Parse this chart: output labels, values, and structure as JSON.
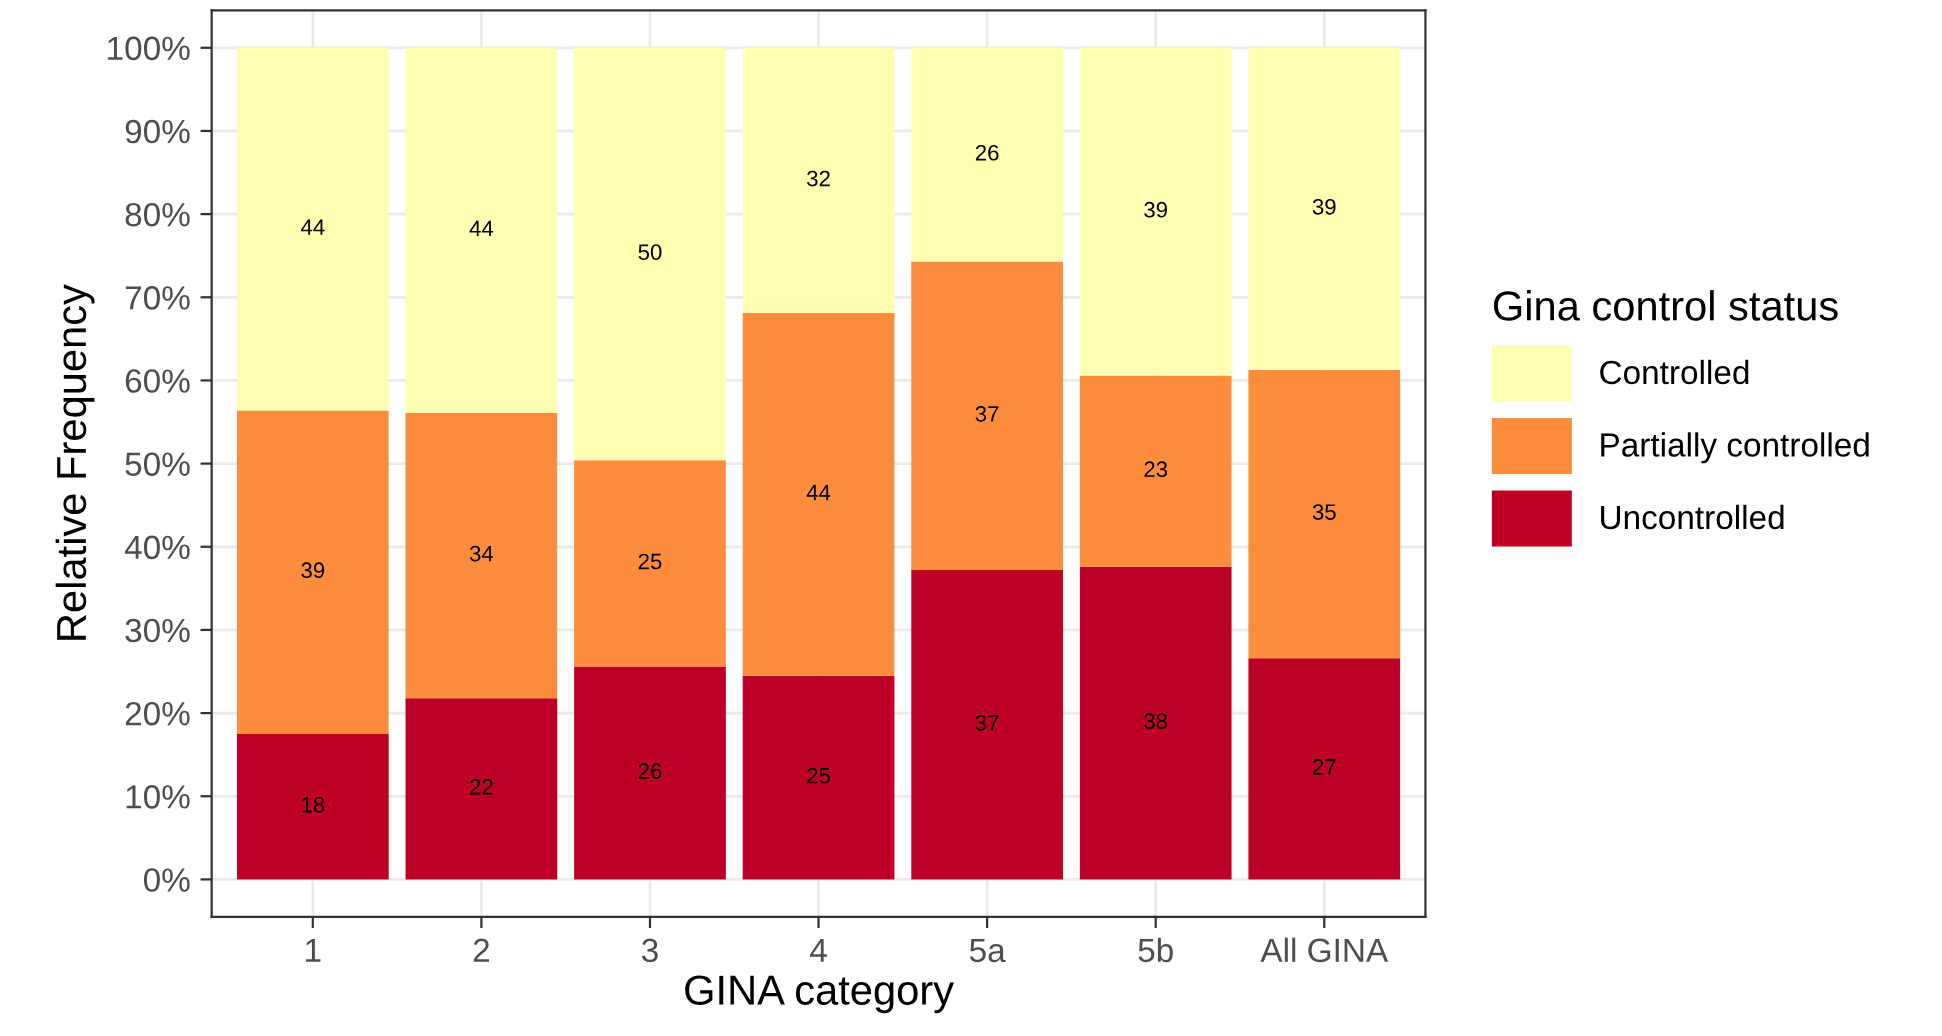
{
  "chart_data": {
    "type": "bar",
    "stacked": true,
    "xlabel": "GINA category",
    "ylabel": "Relative Frequency",
    "legend_title": "Gina control status",
    "legend": "right",
    "grid": true,
    "categories": [
      "1",
      "2",
      "3",
      "4",
      "5a",
      "5b",
      "All GINA"
    ],
    "series": [
      {
        "name": "Uncontrolled",
        "color": "#bd0026",
        "values": [
          17.5,
          21.8,
          25.6,
          24.5,
          37.2,
          37.6,
          26.6
        ],
        "value_labels": [
          "18",
          "22",
          "26",
          "25",
          "37",
          "38",
          "27"
        ]
      },
      {
        "name": "Partially controlled",
        "color": "#fd8d3c",
        "values": [
          38.9,
          34.3,
          24.8,
          43.6,
          37.1,
          23.0,
          34.7
        ],
        "value_labels": [
          "39",
          "34",
          "25",
          "44",
          "37",
          "23",
          "35"
        ]
      },
      {
        "name": "Controlled",
        "color": "#ffffb2",
        "values": [
          43.6,
          43.9,
          49.6,
          31.9,
          25.7,
          39.4,
          38.7
        ],
        "value_labels": [
          "44",
          "44",
          "50",
          "32",
          "26",
          "39",
          "39"
        ]
      }
    ],
    "ylim": [
      -4.5,
      104.5
    ],
    "yticks": [
      {
        "value": 0,
        "label": "0%"
      },
      {
        "value": 10,
        "label": "10%"
      },
      {
        "value": 20,
        "label": "20%"
      },
      {
        "value": 30,
        "label": "30%"
      },
      {
        "value": 40,
        "label": "40%"
      },
      {
        "value": 50,
        "label": "50%"
      },
      {
        "value": 60,
        "label": "60%"
      },
      {
        "value": 70,
        "label": "70%"
      },
      {
        "value": 80,
        "label": "80%"
      },
      {
        "value": 90,
        "label": "90%"
      },
      {
        "value": 100,
        "label": "100%"
      }
    ]
  }
}
